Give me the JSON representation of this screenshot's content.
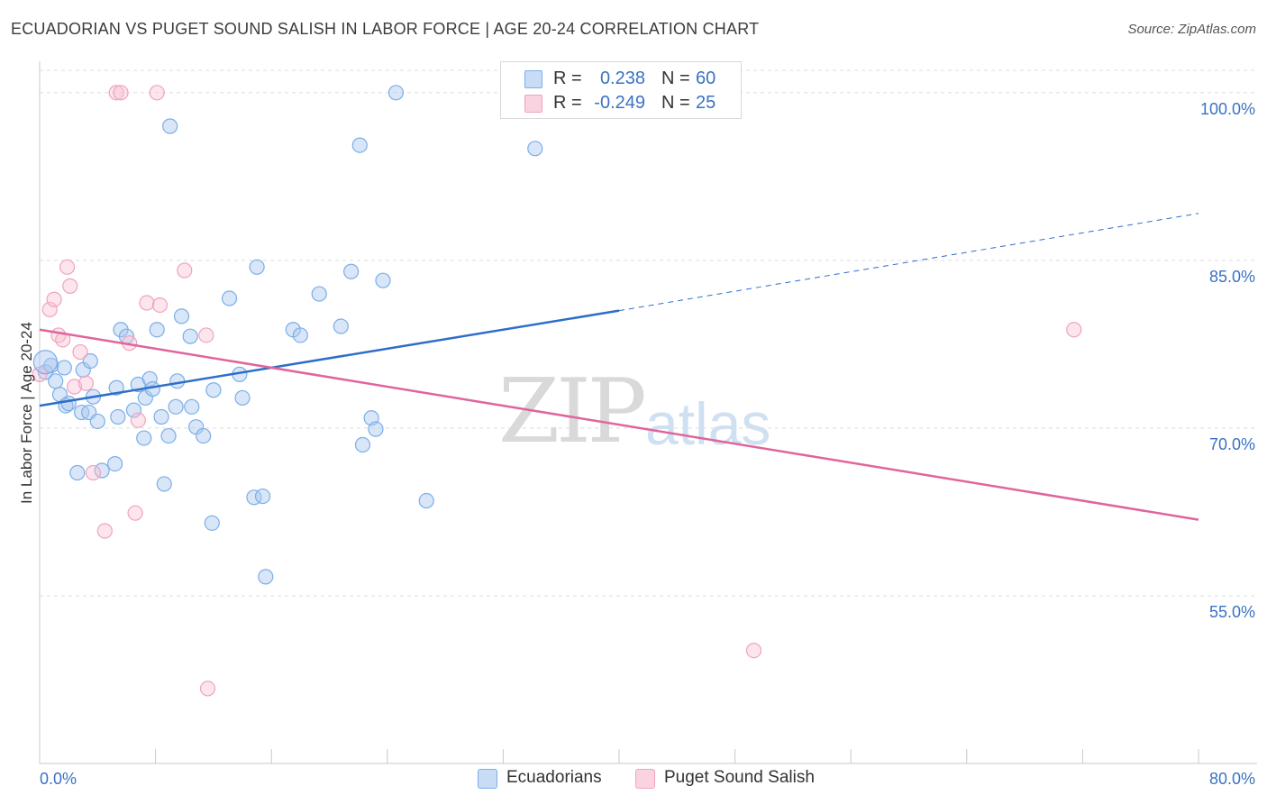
{
  "header": {
    "title": "ECUADORIAN VS PUGET SOUND SALISH IN LABOR FORCE | AGE 20-24 CORRELATION CHART",
    "source": "Source: ZipAtlas.com"
  },
  "watermark": {
    "zip": "ZIP",
    "atlas": "atlas"
  },
  "legend": {
    "rows": [
      {
        "r_label": "R =",
        "r_value": "0.238",
        "n_label": "N =",
        "n_value": "60",
        "color": "#7aaee8"
      },
      {
        "r_label": "R =",
        "r_value": "-0.249",
        "n_label": "N =",
        "n_value": "25",
        "color": "#f0a3bd"
      }
    ]
  },
  "bottom_legend": {
    "items": [
      {
        "label": "Ecuadorians",
        "color": "#7aaee8"
      },
      {
        "label": "Puget Sound Salish",
        "color": "#f0a3bd"
      }
    ]
  },
  "chart_data": {
    "type": "scatter",
    "title": "ECUADORIAN VS PUGET SOUND SALISH IN LABOR FORCE | AGE 20-24 CORRELATION CHART",
    "ylabel": "In Labor Force | Age 20-24",
    "xlim": [
      0,
      80
    ],
    "ylim": [
      40,
      102
    ],
    "x_tick_labels": [
      "0.0%",
      "80.0%"
    ],
    "y_ticks": [
      55,
      70,
      85,
      100
    ],
    "y_tick_labels": [
      "55.0%",
      "70.0%",
      "85.0%",
      "100.0%"
    ],
    "grid": "horizontal dashed",
    "legend_position": "top-center",
    "series": [
      {
        "name": "Ecuadorians",
        "color": "#7aaee8",
        "line_color": "#2e6ec8",
        "trend": {
          "x": [
            0,
            40
          ],
          "y": [
            72.0,
            80.5
          ],
          "dashed_to": [
            80,
            89.2
          ]
        },
        "x": [
          0.4,
          0.8,
          1.1,
          1.4,
          1.7,
          1.8,
          2.0,
          2.6,
          2.9,
          3.0,
          3.4,
          3.5,
          3.7,
          4.0,
          4.3,
          5.2,
          5.3,
          5.4,
          5.6,
          6.0,
          6.5,
          6.8,
          7.2,
          7.3,
          7.6,
          7.8,
          8.1,
          8.4,
          8.6,
          8.9,
          9.0,
          9.4,
          9.5,
          9.8,
          10.4,
          10.5,
          10.8,
          11.3,
          11.9,
          12.0,
          13.1,
          13.8,
          14.0,
          14.8,
          15.0,
          15.4,
          15.6,
          17.5,
          18.0,
          19.3,
          20.8,
          21.5,
          22.1,
          22.3,
          22.9,
          23.2,
          23.7,
          24.6,
          26.7,
          34.2
        ],
        "y": [
          75.0,
          75.6,
          74.2,
          73.0,
          75.4,
          72.0,
          72.2,
          66.0,
          71.4,
          75.2,
          71.4,
          76.0,
          72.8,
          70.6,
          66.2,
          66.8,
          73.6,
          71.0,
          78.8,
          78.2,
          71.6,
          73.9,
          69.1,
          72.7,
          74.4,
          73.5,
          78.8,
          71.0,
          65.0,
          69.3,
          97.0,
          71.9,
          74.2,
          80.0,
          78.2,
          71.9,
          70.1,
          69.3,
          61.5,
          73.4,
          81.6,
          74.8,
          72.7,
          63.8,
          84.4,
          63.9,
          56.7,
          78.8,
          78.3,
          82.0,
          79.1,
          84.0,
          95.3,
          68.5,
          70.9,
          69.9,
          83.2,
          100.0,
          63.5,
          95.0
        ]
      },
      {
        "name": "Puget Sound Salish",
        "color": "#f0a3bd",
        "line_color": "#e0659a",
        "trend": {
          "x": [
            0,
            80
          ],
          "y": [
            78.8,
            61.8
          ]
        },
        "x": [
          0.0,
          0.7,
          1.0,
          1.3,
          1.6,
          1.9,
          2.1,
          2.4,
          2.8,
          3.2,
          3.7,
          4.5,
          5.3,
          5.6,
          6.2,
          6.6,
          6.8,
          7.4,
          8.1,
          8.3,
          10.0,
          11.5,
          11.6,
          49.3,
          71.4
        ],
        "y": [
          74.8,
          80.6,
          81.5,
          78.3,
          77.9,
          84.4,
          82.7,
          73.7,
          76.8,
          74.0,
          66.0,
          60.8,
          100.0,
          100.0,
          77.6,
          62.4,
          70.7,
          81.2,
          100.0,
          81.0,
          84.1,
          78.3,
          46.7,
          50.1,
          78.8
        ]
      }
    ]
  }
}
